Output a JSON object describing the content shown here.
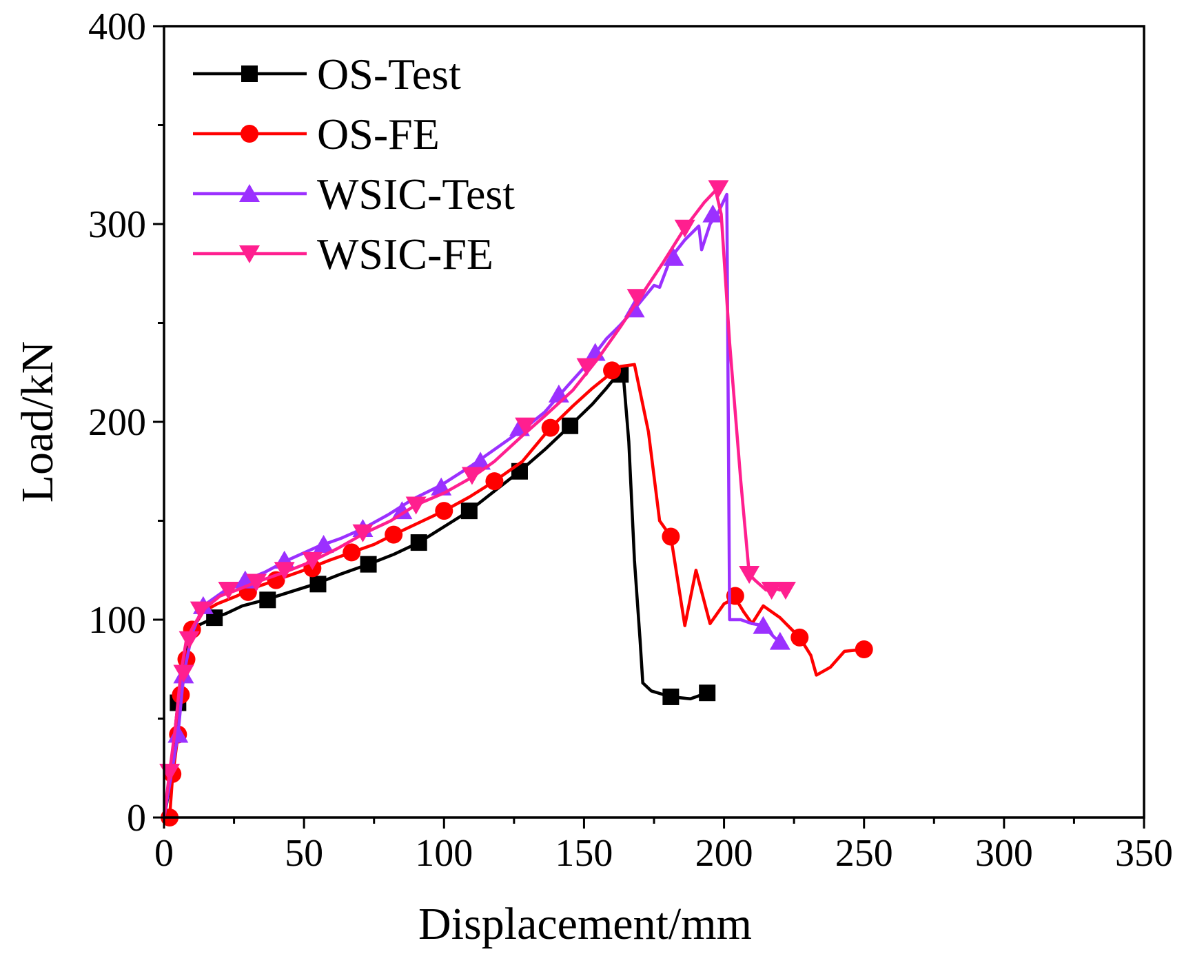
{
  "chart_data": {
    "type": "line",
    "xlabel": "Displacement/mm",
    "ylabel": "Load/kN",
    "xlim": [
      0,
      350
    ],
    "ylim": [
      0,
      400
    ],
    "x_ticks": [
      0,
      50,
      100,
      150,
      200,
      250,
      300,
      350
    ],
    "y_ticks": [
      0,
      100,
      200,
      300,
      400
    ],
    "x_tick_labels": [
      "0",
      "50",
      "100",
      "150",
      "200",
      "250",
      "300",
      "350"
    ],
    "y_tick_labels": [
      "0",
      "100",
      "200",
      "300",
      "400"
    ],
    "grid": false,
    "legend_position": "top-left",
    "series": [
      {
        "name": "OS-Test",
        "color": "#000000",
        "marker": "square",
        "line": [
          [
            0,
            0
          ],
          [
            2,
            15
          ],
          [
            4,
            45
          ],
          [
            5,
            58
          ],
          [
            7,
            78
          ],
          [
            9,
            90
          ],
          [
            12,
            97
          ],
          [
            18,
            101
          ],
          [
            22,
            103
          ],
          [
            28,
            107
          ],
          [
            36,
            110
          ],
          [
            45,
            114
          ],
          [
            54,
            118
          ],
          [
            63,
            123
          ],
          [
            73,
            128
          ],
          [
            82,
            133
          ],
          [
            91,
            139
          ],
          [
            100,
            147
          ],
          [
            109,
            155
          ],
          [
            118,
            165
          ],
          [
            127,
            175
          ],
          [
            136,
            186
          ],
          [
            145,
            198
          ],
          [
            153,
            209
          ],
          [
            158,
            217
          ],
          [
            162,
            224
          ],
          [
            164,
            224
          ],
          [
            166,
            190
          ],
          [
            168,
            130
          ],
          [
            170,
            90
          ],
          [
            171,
            68
          ],
          [
            174,
            64
          ],
          [
            181,
            61
          ],
          [
            188,
            60
          ],
          [
            194,
            63
          ]
        ],
        "markers": [
          [
            5,
            58
          ],
          [
            18,
            101
          ],
          [
            37,
            110
          ],
          [
            55,
            118
          ],
          [
            73,
            128
          ],
          [
            91,
            139
          ],
          [
            109,
            155
          ],
          [
            127,
            175
          ],
          [
            145,
            198
          ],
          [
            163,
            224
          ],
          [
            181,
            61
          ],
          [
            194,
            63
          ]
        ]
      },
      {
        "name": "OS-FE",
        "color": "#ff0000",
        "marker": "circle",
        "line": [
          [
            2,
            0
          ],
          [
            3,
            20
          ],
          [
            5,
            42
          ],
          [
            6,
            61
          ],
          [
            8,
            79
          ],
          [
            10,
            95
          ],
          [
            14,
            104
          ],
          [
            19,
            108
          ],
          [
            26,
            112
          ],
          [
            32,
            116
          ],
          [
            40,
            120
          ],
          [
            50,
            125
          ],
          [
            59,
            130
          ],
          [
            67,
            134
          ],
          [
            75,
            138
          ],
          [
            82,
            143
          ],
          [
            91,
            149
          ],
          [
            100,
            155
          ],
          [
            109,
            162
          ],
          [
            118,
            170
          ],
          [
            128,
            180
          ],
          [
            138,
            197
          ],
          [
            146,
            208
          ],
          [
            153,
            217
          ],
          [
            160,
            225
          ],
          [
            163,
            228
          ],
          [
            168,
            229
          ],
          [
            173,
            195
          ],
          [
            177,
            150
          ],
          [
            181,
            142
          ],
          [
            186,
            97
          ],
          [
            190,
            125
          ],
          [
            195,
            98
          ],
          [
            200,
            108
          ],
          [
            204,
            111
          ],
          [
            207,
            104
          ],
          [
            210,
            98
          ],
          [
            214,
            107
          ],
          [
            220,
            101
          ],
          [
            227,
            91
          ],
          [
            231,
            82
          ],
          [
            233,
            72
          ],
          [
            238,
            76
          ],
          [
            243,
            84
          ],
          [
            250,
            85
          ]
        ],
        "markers": [
          [
            2,
            0
          ],
          [
            3,
            22
          ],
          [
            5,
            42
          ],
          [
            6,
            62
          ],
          [
            8,
            80
          ],
          [
            10,
            95
          ],
          [
            30,
            114
          ],
          [
            40,
            120
          ],
          [
            53,
            126
          ],
          [
            67,
            134
          ],
          [
            82,
            143
          ],
          [
            100,
            155
          ],
          [
            118,
            170
          ],
          [
            138,
            197
          ],
          [
            160,
            226
          ],
          [
            181,
            142
          ],
          [
            204,
            112
          ],
          [
            227,
            91
          ],
          [
            250,
            85
          ]
        ]
      },
      {
        "name": "WSIC-Test",
        "color": "#9b30ff",
        "marker": "triangle-up",
        "line": [
          [
            0,
            0
          ],
          [
            3,
            25
          ],
          [
            5,
            42
          ],
          [
            7,
            72
          ],
          [
            10,
            93
          ],
          [
            14,
            107
          ],
          [
            21,
            114
          ],
          [
            29,
            120
          ],
          [
            36,
            124
          ],
          [
            44,
            130
          ],
          [
            55,
            137
          ],
          [
            63,
            141
          ],
          [
            71,
            146
          ],
          [
            80,
            153
          ],
          [
            89,
            161
          ],
          [
            99,
            168
          ],
          [
            110,
            178
          ],
          [
            120,
            188
          ],
          [
            129,
            197
          ],
          [
            136,
            205
          ],
          [
            144,
            218
          ],
          [
            151,
            229
          ],
          [
            158,
            242
          ],
          [
            163,
            249
          ],
          [
            168,
            257
          ],
          [
            175,
            269
          ],
          [
            177,
            268
          ],
          [
            181,
            283
          ],
          [
            186,
            292
          ],
          [
            191,
            299
          ],
          [
            192,
            287
          ],
          [
            195,
            300
          ],
          [
            198,
            306
          ],
          [
            201,
            315
          ],
          [
            202,
            100
          ],
          [
            206,
            100
          ],
          [
            210,
            98
          ],
          [
            214,
            97
          ],
          [
            218,
            91
          ],
          [
            222,
            87
          ]
        ],
        "markers": [
          [
            5,
            42
          ],
          [
            7,
            72
          ],
          [
            14,
            107
          ],
          [
            29,
            120
          ],
          [
            43,
            130
          ],
          [
            57,
            138
          ],
          [
            71,
            146
          ],
          [
            85,
            155
          ],
          [
            99,
            167
          ],
          [
            113,
            180
          ],
          [
            127,
            197
          ],
          [
            141,
            214
          ],
          [
            154,
            235
          ],
          [
            168,
            257
          ],
          [
            182,
            283
          ],
          [
            196,
            305
          ],
          [
            214,
            97
          ],
          [
            220,
            89
          ]
        ]
      },
      {
        "name": "WSIC-FE",
        "color": "#ff1f8f",
        "marker": "triangle-down",
        "line": [
          [
            0,
            0
          ],
          [
            2,
            23
          ],
          [
            4,
            45
          ],
          [
            6,
            73
          ],
          [
            8,
            90
          ],
          [
            11,
            98
          ],
          [
            14,
            105
          ],
          [
            20,
            112
          ],
          [
            26,
            115
          ],
          [
            33,
            119
          ],
          [
            43,
            124
          ],
          [
            52,
            129
          ],
          [
            62,
            136
          ],
          [
            72,
            144
          ],
          [
            81,
            150
          ],
          [
            90,
            158
          ],
          [
            100,
            164
          ],
          [
            110,
            172
          ],
          [
            118,
            180
          ],
          [
            128,
            193
          ],
          [
            136,
            203
          ],
          [
            146,
            216
          ],
          [
            155,
            232
          ],
          [
            163,
            248
          ],
          [
            170,
            263
          ],
          [
            178,
            280
          ],
          [
            186,
            298
          ],
          [
            193,
            311
          ],
          [
            197,
            317
          ],
          [
            199,
            305
          ],
          [
            202,
            240
          ],
          [
            206,
            170
          ],
          [
            209,
            123
          ],
          [
            211,
            120
          ],
          [
            215,
            115
          ],
          [
            218,
            116
          ],
          [
            220,
            115
          ]
        ],
        "markers": [
          [
            2,
            23
          ],
          [
            7,
            73
          ],
          [
            9,
            90
          ],
          [
            13,
            105
          ],
          [
            23,
            115
          ],
          [
            33,
            119
          ],
          [
            43,
            125
          ],
          [
            53,
            130
          ],
          [
            71,
            144
          ],
          [
            90,
            158
          ],
          [
            110,
            173
          ],
          [
            129,
            198
          ],
          [
            151,
            228
          ],
          [
            169,
            263
          ],
          [
            186,
            298
          ],
          [
            198,
            318
          ],
          [
            209,
            123
          ],
          [
            217,
            115
          ],
          [
            222,
            115
          ]
        ]
      }
    ]
  }
}
